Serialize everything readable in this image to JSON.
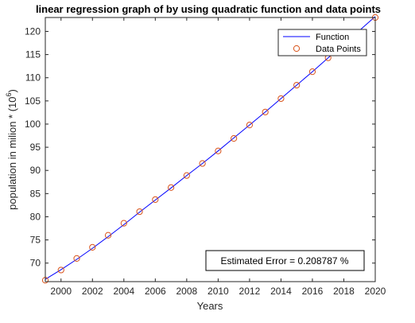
{
  "chart_data": {
    "type": "line",
    "title": "linear regression graph of by using quadratic function and data points",
    "xlabel": "Years",
    "ylabel": "population in milion * (10",
    "ylabel_exponent": "6",
    "ylabel_close": ")",
    "xlim": [
      1999,
      2020
    ],
    "ylim": [
      66,
      123
    ],
    "xticks": [
      2000,
      2002,
      2004,
      2006,
      2008,
      2010,
      2012,
      2014,
      2016,
      2018,
      2020
    ],
    "yticks": [
      70,
      75,
      80,
      85,
      90,
      95,
      100,
      105,
      110,
      115,
      120
    ],
    "grid": false,
    "legend": {
      "position": "top-right",
      "entries": [
        "Function",
        "Data Points"
      ]
    },
    "annotation": "Estimated  Error = 0.208787 %",
    "series": [
      {
        "name": "Function",
        "style": "line",
        "color": "#0000ff",
        "x": [
          1999,
          2000,
          2001,
          2002,
          2003,
          2004,
          2005,
          2006,
          2007,
          2008,
          2009,
          2010,
          2011,
          2012,
          2013,
          2014,
          2015,
          2016,
          2017,
          2018,
          2019,
          2020
        ],
        "y": [
          66.5,
          68.6,
          70.8,
          73.2,
          75.7,
          78.3,
          81.0,
          83.6,
          86.2,
          88.9,
          91.5,
          94.2,
          97.0,
          99.8,
          102.6,
          105.5,
          108.4,
          111.3,
          114.3,
          117.3,
          120.2,
          123.2
        ]
      },
      {
        "name": "Data Points",
        "style": "marker-circle",
        "color": "#d95319",
        "x": [
          1999,
          2000,
          2001,
          2002,
          2003,
          2004,
          2005,
          2006,
          2007,
          2008,
          2009,
          2010,
          2011,
          2012,
          2013,
          2014,
          2015,
          2016,
          2017,
          2020
        ],
        "y": [
          66.3,
          68.5,
          71.0,
          73.4,
          76.0,
          78.6,
          81.1,
          83.7,
          86.3,
          88.9,
          91.5,
          94.2,
          96.9,
          99.8,
          102.6,
          105.5,
          108.4,
          111.3,
          114.3,
          123.0
        ]
      }
    ]
  }
}
